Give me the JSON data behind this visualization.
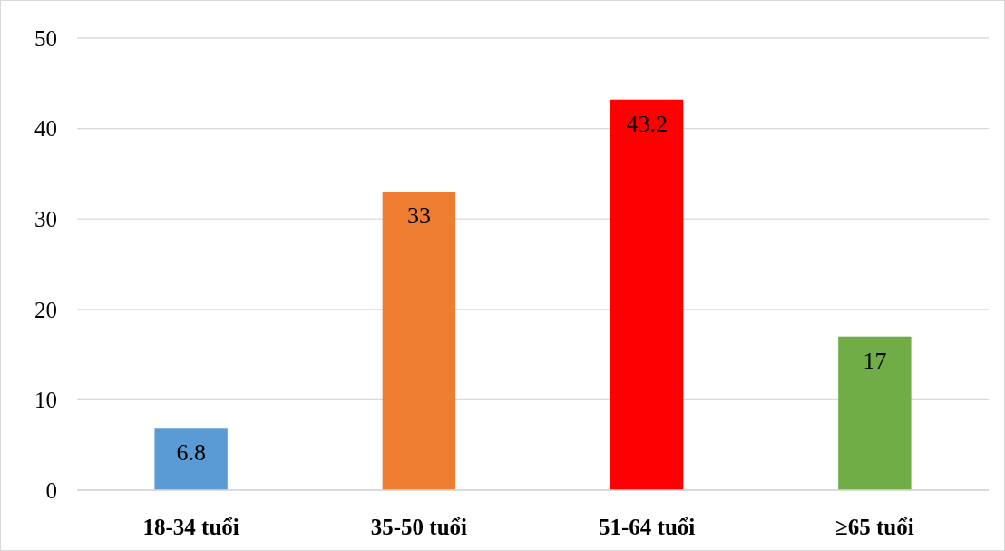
{
  "chart_data": {
    "type": "bar",
    "categories": [
      "18-34 tuổi",
      "35-50 tuổi",
      "51-64 tuổi",
      "≥65 tuổi"
    ],
    "values": [
      6.8,
      33,
      43.2,
      17
    ],
    "colors": [
      "#5b9bd5",
      "#ed7d31",
      "#ff0000",
      "#70ad47"
    ],
    "ylim": [
      0,
      50
    ],
    "yticks": [
      0,
      10,
      20,
      30,
      40,
      50
    ],
    "grid": "y",
    "data_labels": true
  }
}
